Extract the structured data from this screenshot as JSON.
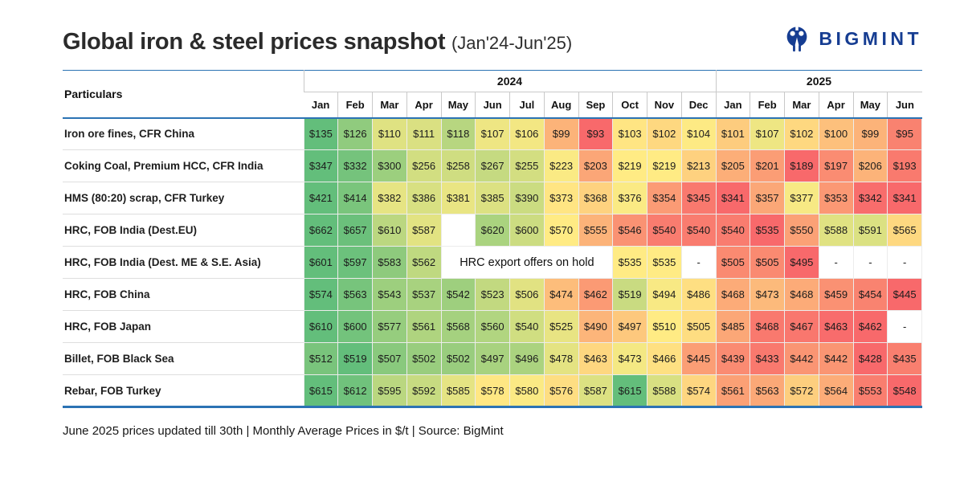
{
  "header": {
    "title": "Global iron & steel prices snapshot",
    "subtitle": "(Jan'24-Jun'25)",
    "brand": "BIGMINT"
  },
  "colors": {
    "accent": "#2B73B4",
    "brand_navy": "#163D92",
    "scale_low": "#F8696B",
    "scale_mid": "#FFEB84",
    "scale_high": "#63BE7B"
  },
  "chart_data": {
    "type": "heatmap",
    "title": "Global iron & steel prices snapshot (Jan'24-Jun'25)",
    "unit": "Monthly Average Prices in $/t",
    "particulars_label": "Particulars",
    "year_groups": [
      {
        "label": "2024",
        "span": 12
      },
      {
        "label": "2025",
        "span": 6
      }
    ],
    "columns": [
      "Jan",
      "Feb",
      "Mar",
      "Apr",
      "May",
      "Jun",
      "Jul",
      "Aug",
      "Sep",
      "Oct",
      "Nov",
      "Dec",
      "Jan",
      "Feb",
      "Mar",
      "Apr",
      "May",
      "Jun"
    ],
    "rows": [
      {
        "label": "Iron ore fines, CFR China",
        "cells": [
          135,
          126,
          110,
          111,
          118,
          107,
          106,
          99,
          93,
          103,
          102,
          104,
          101,
          107,
          102,
          100,
          99,
          95
        ]
      },
      {
        "label": "Coking Coal, Premium HCC, CFR India",
        "cells": [
          347,
          332,
          300,
          256,
          258,
          267,
          255,
          223,
          203,
          219,
          219,
          213,
          205,
          201,
          189,
          197,
          206,
          193
        ]
      },
      {
        "label": "HMS (80:20) scrap, CFR Turkey",
        "cells": [
          421,
          414,
          382,
          386,
          381,
          385,
          390,
          373,
          368,
          376,
          354,
          345,
          341,
          357,
          377,
          353,
          342,
          341
        ]
      },
      {
        "label": "HRC, FOB India (Dest.EU)",
        "cells": [
          662,
          657,
          610,
          587,
          null,
          620,
          600,
          570,
          555,
          546,
          540,
          540,
          540,
          535,
          550,
          588,
          591,
          565
        ]
      },
      {
        "label": "HRC, FOB India (Dest. ME & S.E. Asia)",
        "cells": [
          601,
          597,
          583,
          562,
          {
            "note": "HRC export offers on hold",
            "span": 5
          },
          535,
          535,
          "-",
          505,
          505,
          495,
          "-",
          "-",
          "-"
        ]
      },
      {
        "label": "HRC, FOB China",
        "cells": [
          574,
          563,
          543,
          537,
          542,
          523,
          506,
          474,
          462,
          519,
          494,
          486,
          468,
          473,
          468,
          459,
          454,
          445
        ]
      },
      {
        "label": "HRC, FOB Japan",
        "cells": [
          610,
          600,
          577,
          561,
          568,
          560,
          540,
          525,
          490,
          497,
          510,
          505,
          485,
          468,
          467,
          463,
          462,
          "-"
        ]
      },
      {
        "label": "Billet, FOB Black Sea",
        "cells": [
          512,
          519,
          507,
          502,
          502,
          497,
          496,
          478,
          463,
          473,
          466,
          445,
          439,
          433,
          442,
          442,
          428,
          435
        ]
      },
      {
        "label": "Rebar, FOB Turkey",
        "cells": [
          615,
          612,
          595,
          592,
          585,
          578,
          580,
          576,
          587,
          615,
          588,
          574,
          561,
          563,
          572,
          564,
          553,
          548
        ]
      }
    ]
  },
  "footer": {
    "note": "June 2025 prices updated till 30th  | Monthly Average Prices in $/t | Source: BigMint"
  }
}
